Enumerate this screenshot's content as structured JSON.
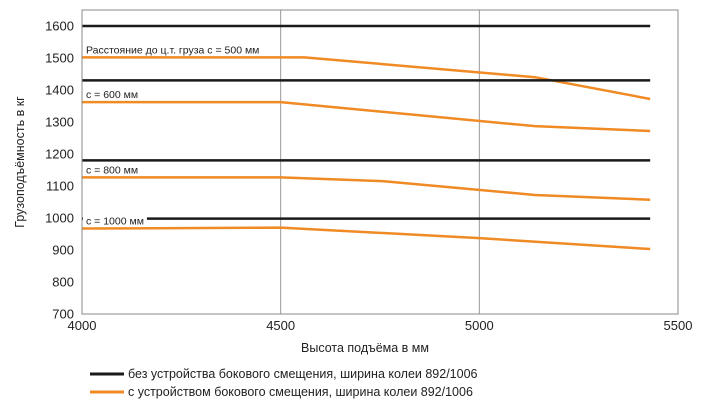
{
  "chart_data": {
    "type": "line",
    "xlabel": "Высота подъёма в мм",
    "ylabel": "Грузоподъёмность в кг",
    "xlim": [
      4000,
      5500
    ],
    "ylim": [
      700,
      1650
    ],
    "x_ticks": [
      "4000",
      "4500",
      "5000",
      "5500"
    ],
    "y_ticks": [
      "700",
      "800",
      "900",
      "1000",
      "1100",
      "1200",
      "1300",
      "1400",
      "1500",
      "1600"
    ],
    "grid": true,
    "legend_position": "bottom",
    "colors": {
      "without_side_shift": "#1a1a1a",
      "with_side_shift": "#f08a24",
      "grid": "#999999",
      "frame": "#888888"
    },
    "legend": [
      {
        "label": "без устройства бокового смещения, ширина колеи 892/1006",
        "color_key": "without_side_shift"
      },
      {
        "label": "с устройством бокового смещения, ширина колеи 892/1006",
        "color_key": "with_side_shift"
      }
    ],
    "groups": [
      {
        "label": "Расстояние до ц.т. груза c = 500 мм",
        "without_side_shift": {
          "x": [
            4000,
            5430
          ],
          "y": [
            1600,
            1600
          ]
        },
        "with_side_shift": {
          "x": [
            4000,
            4560,
            5140,
            5430
          ],
          "y": [
            1502,
            1502,
            1440,
            1372
          ]
        }
      },
      {
        "label": "c = 600 мм",
        "without_side_shift": {
          "x": [
            4000,
            5430
          ],
          "y": [
            1430,
            1430
          ]
        },
        "with_side_shift": {
          "x": [
            4000,
            4500,
            5140,
            5430
          ],
          "y": [
            1362,
            1362,
            1287,
            1272
          ]
        }
      },
      {
        "label": "c = 800 мм",
        "without_side_shift": {
          "x": [
            4000,
            5430
          ],
          "y": [
            1180,
            1180
          ]
        },
        "with_side_shift": {
          "x": [
            4000,
            4500,
            4760,
            5140,
            5430
          ],
          "y": [
            1127,
            1127,
            1115,
            1072,
            1057
          ]
        }
      },
      {
        "label": "c = 1000 мм",
        "without_side_shift": {
          "x": [
            4000,
            5430
          ],
          "y": [
            998,
            998
          ]
        },
        "with_side_shift": {
          "x": [
            4000,
            4500,
            5000,
            5430
          ],
          "y": [
            967,
            970,
            937,
            903
          ]
        }
      }
    ]
  }
}
